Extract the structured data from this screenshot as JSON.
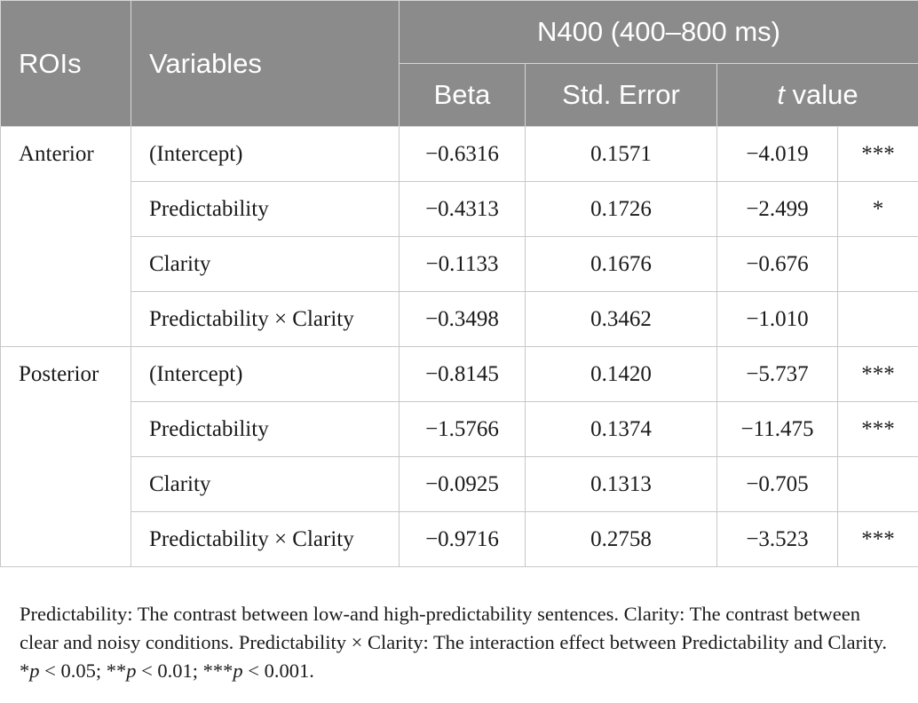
{
  "header": {
    "rois": "ROIs",
    "variables": "Variables",
    "group": "N400 (400–800 ms)",
    "beta": "Beta",
    "std_error": "Std. Error",
    "t_italic": "t",
    "t_rest": " value"
  },
  "rows": [
    {
      "roi": "Anterior",
      "variable": "(Intercept)",
      "beta": "−0.6316",
      "se": "0.1571",
      "t": "−4.019",
      "sig": "***"
    },
    {
      "variable": "Predictability",
      "beta": "−0.4313",
      "se": "0.1726",
      "t": "−2.499",
      "sig": "*"
    },
    {
      "variable": "Clarity",
      "beta": "−0.1133",
      "se": "0.1676",
      "t": "−0.676",
      "sig": ""
    },
    {
      "variable": "Predictability × Clarity",
      "beta": "−0.3498",
      "se": "0.3462",
      "t": "−1.010",
      "sig": ""
    },
    {
      "roi": "Posterior",
      "variable": "(Intercept)",
      "beta": "−0.8145",
      "se": "0.1420",
      "t": "−5.737",
      "sig": "***"
    },
    {
      "variable": "Predictability",
      "beta": "−1.5766",
      "se": "0.1374",
      "t": "−11.475",
      "sig": "***"
    },
    {
      "variable": "Clarity",
      "beta": "−0.0925",
      "se": "0.1313",
      "t": "−0.705",
      "sig": ""
    },
    {
      "variable": "Predictability × Clarity",
      "beta": "−0.9716",
      "se": "0.2758",
      "t": "−3.523",
      "sig": "***"
    }
  ],
  "footnote": {
    "text": "Predictability: The contrast between low-and high-predictability sentences. Clarity: The contrast between clear and noisy conditions. Predictability × Clarity: The interaction effect between Predictability and Clarity. ",
    "p1_stars": "*",
    "p1_val": " < 0.05; ",
    "p2_stars": "**",
    "p2_val": " < 0.01; ",
    "p3_stars": "***",
    "p3_val": " < 0.001.",
    "p_letter": "p"
  }
}
